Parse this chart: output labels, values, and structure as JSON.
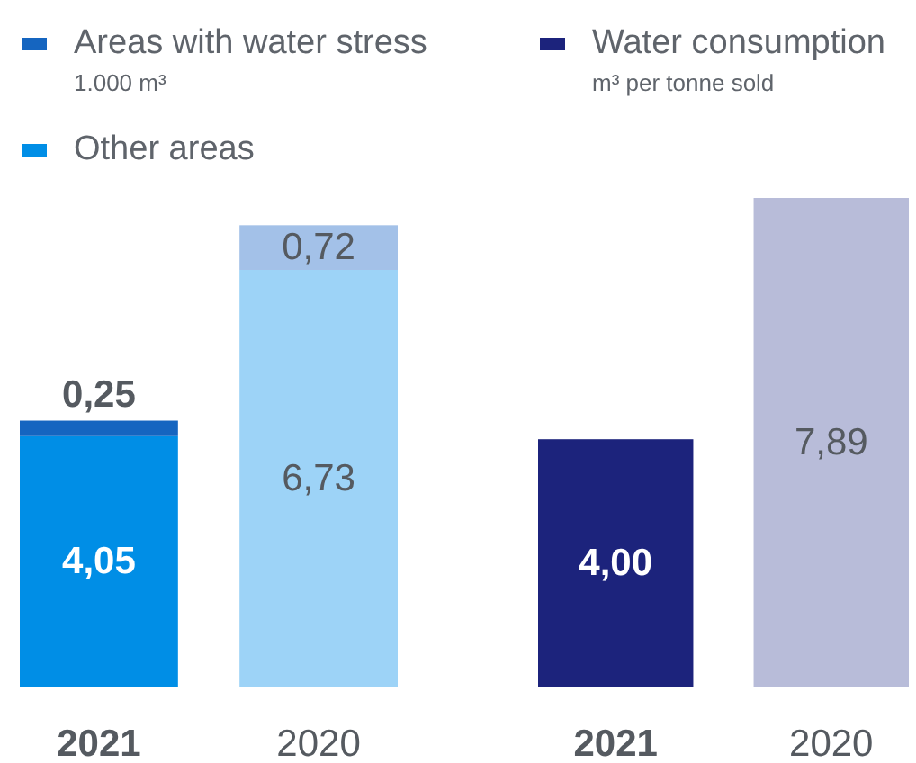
{
  "chart_data": [
    {
      "type": "bar",
      "stacked": true,
      "ylabel": "1.000 m³",
      "categories": [
        "2021",
        "2020"
      ],
      "legend": "top left",
      "series": [
        {
          "name": "Other areas",
          "color": "#008ee6",
          "colors": [
            "#008ee6",
            "#9dd3f7"
          ],
          "values": [
            4.05,
            6.73
          ],
          "value_labels": [
            "4,05",
            "6,73"
          ]
        },
        {
          "name": "Areas with water stress",
          "color": "#1565c0",
          "colors": [
            "#1565c0",
            "#a3c1e8"
          ],
          "values": [
            0.25,
            0.72
          ],
          "value_labels": [
            "0,25",
            "0,72"
          ]
        }
      ]
    },
    {
      "type": "bar",
      "ylabel": "m³ per tonne sold",
      "categories": [
        "2021",
        "2020"
      ],
      "legend": "top left",
      "series": [
        {
          "name": "Water consumption",
          "color": "#1c237c",
          "colors": [
            "#1c237c",
            "#b8bcd9"
          ],
          "values": [
            4.0,
            7.89
          ],
          "value_labels": [
            "4,00",
            "7,89"
          ]
        }
      ]
    }
  ]
}
